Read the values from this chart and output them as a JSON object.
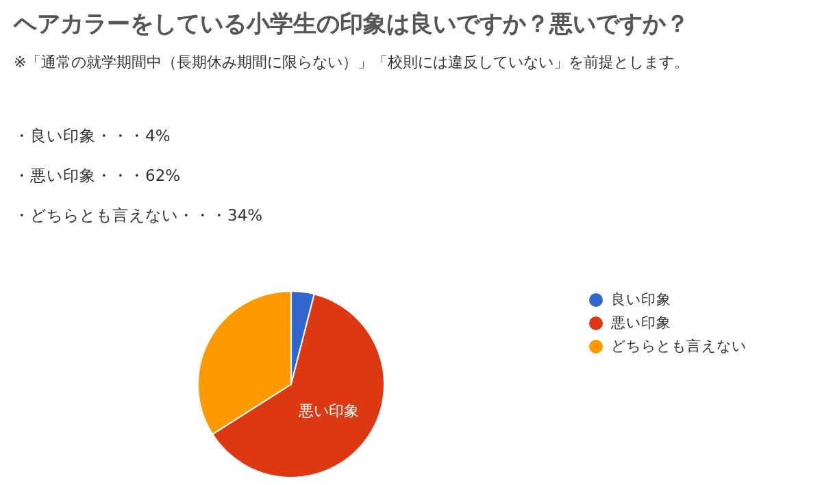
{
  "chart_data": {
    "type": "pie",
    "title": "ヘアカラーをしている小学生の印象は良いですか？悪いですか？",
    "subtitle": "※「通常の就学期間中（長期休み期間に限らない）」「校則には違反していない」を前提とします。",
    "annotations": [
      "・良い印象・・・4%",
      "・悪い印象・・・62%",
      "・どちらとも言えない・・・34%"
    ],
    "categories": [
      "良い印象",
      "悪い印象",
      "どちらとも言えない"
    ],
    "values": [
      4,
      62,
      34
    ],
    "colors": [
      "#3366cc",
      "#dc3912",
      "#ff9900"
    ],
    "value_labels": [
      null,
      "悪い印象",
      null
    ],
    "legend": "right"
  }
}
